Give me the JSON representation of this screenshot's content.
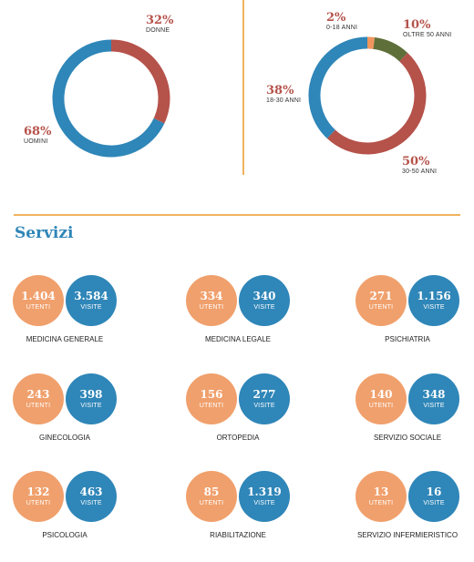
{
  "chart_data": [
    {
      "type": "pie",
      "variant": "donut",
      "slices": [
        {
          "label": "DONNE",
          "percent": "32%",
          "value": 32,
          "color": "#b5524a"
        },
        {
          "label": "UOMINI",
          "percent": "68%",
          "value": 68,
          "color": "#2f86b8"
        }
      ]
    },
    {
      "type": "pie",
      "variant": "donut",
      "slices": [
        {
          "label": "0-18 ANNI",
          "percent": "2%",
          "value": 2,
          "color": "#f0955d"
        },
        {
          "label": "OLTRE 50 ANNI",
          "percent": "10%",
          "value": 10,
          "color": "#5f6f3a"
        },
        {
          "label": "30-50 ANNI",
          "percent": "50%",
          "value": 50,
          "color": "#b5524a"
        },
        {
          "label": "18-30 ANNI",
          "percent": "38%",
          "value": 38,
          "color": "#2f86b8"
        }
      ]
    }
  ],
  "services": {
    "title": "Servizi",
    "utenti_label": "UTENTI",
    "visite_label": "VISITE",
    "items": [
      {
        "name": "MEDICINA GENERALE",
        "utenti": "1.404",
        "visite": "3.584"
      },
      {
        "name": "MEDICINA LEGALE",
        "utenti": "334",
        "visite": "340"
      },
      {
        "name": "PSICHIATRIA",
        "utenti": "271",
        "visite": "1.156"
      },
      {
        "name": "GINECOLOGIA",
        "utenti": "243",
        "visite": "398"
      },
      {
        "name": "ORTOPEDIA",
        "utenti": "156",
        "visite": "277"
      },
      {
        "name": "SERVIZIO SOCIALE",
        "utenti": "140",
        "visite": "348"
      },
      {
        "name": "PSICOLOGIA",
        "utenti": "132",
        "visite": "463"
      },
      {
        "name": "RIABILITAZIONE",
        "utenti": "85",
        "visite": "1.319"
      },
      {
        "name": "SERVIZIO INFERMIERISTICO",
        "utenti": "13",
        "visite": "16"
      }
    ]
  },
  "colors": {
    "blue": "#2f86b8",
    "red": "#b5524a",
    "orange": "#f0a06c",
    "olive": "#5f6f3a",
    "divider": "#f0b35c"
  }
}
